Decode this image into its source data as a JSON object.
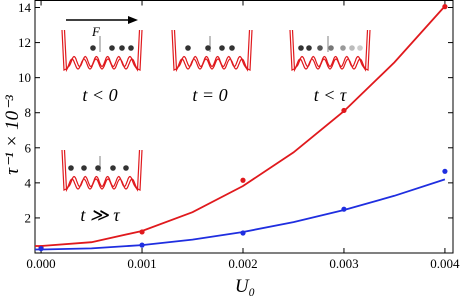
{
  "chart_data": {
    "type": "scatter",
    "xlabel": "U₀",
    "ylabel": "τ⁻¹ × 10⁻³",
    "xlim": [
      -6e-05,
      0.00408
    ],
    "ylim": [
      0,
      14.4
    ],
    "xticks": [
      {
        "value": 0,
        "label": "0.000"
      },
      {
        "value": 0.001,
        "label": "0.001"
      },
      {
        "value": 0.002,
        "label": "0.002"
      },
      {
        "value": 0.003,
        "label": "0.003"
      },
      {
        "value": 0.004,
        "label": "0.004"
      }
    ],
    "yticks": [
      2,
      4,
      6,
      8,
      10,
      12,
      14
    ],
    "series": [
      {
        "mode": "markers",
        "color": "#e0191d",
        "x": [
          0,
          0.001,
          0.002,
          0.003,
          0.004
        ],
        "values": [
          0.3,
          1.2,
          4.15,
          8.13,
          14.05
        ]
      },
      {
        "mode": "markers",
        "color": "#1f2ee0",
        "x": [
          0,
          0.001,
          0.002,
          0.003,
          0.004
        ],
        "values": [
          0.25,
          0.45,
          1.14,
          2.5,
          4.66
        ]
      },
      {
        "mode": "line",
        "color": "#e0191d",
        "x": [
          -6e-05,
          0,
          0.0005,
          0.001,
          0.0015,
          0.002,
          0.0025,
          0.003,
          0.0035,
          0.004
        ],
        "values": [
          0.4,
          0.4,
          0.614,
          1.255,
          2.324,
          3.82,
          5.74,
          8.095,
          10.87,
          14.08
        ]
      },
      {
        "mode": "line",
        "color": "#1f2ee0",
        "x": [
          -6e-05,
          0,
          0.0005,
          0.001,
          0.0015,
          0.002,
          0.0025,
          0.003,
          0.0035,
          0.004
        ],
        "values": [
          0.2,
          0.2,
          0.263,
          0.45,
          0.763,
          1.2,
          1.763,
          2.45,
          3.263,
          4.2
        ]
      }
    ],
    "annotations": [
      "F",
      "t < 0",
      "t = 0",
      "t < τ",
      "t ≫ τ"
    ]
  }
}
